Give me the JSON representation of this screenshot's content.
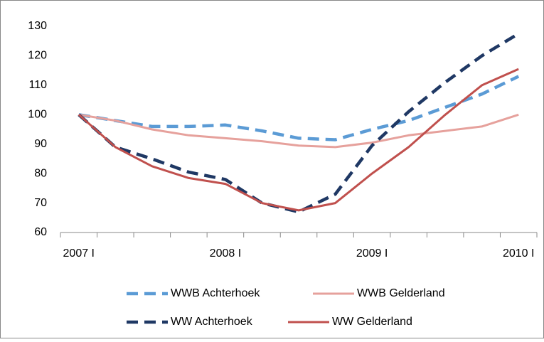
{
  "chart_data": {
    "type": "line",
    "categories": [
      "2007 I",
      null,
      null,
      null,
      "2008 I",
      null,
      null,
      null,
      "2009 I",
      null,
      null,
      null,
      "2010 I"
    ],
    "series": [
      {
        "name": "WWB Achterhoek",
        "color": "#5b9bd5",
        "dash": true,
        "values": [
          100,
          98,
          96,
          96,
          96.5,
          94.5,
          92,
          91.5,
          95,
          98,
          102.5,
          107,
          113
        ]
      },
      {
        "name": "WWB Gelderland",
        "color": "#e6a19c",
        "dash": false,
        "values": [
          100,
          98,
          95,
          93,
          92,
          91,
          89.5,
          89,
          90.5,
          93,
          94.5,
          96,
          100
        ]
      },
      {
        "name": "WW Achterhoek",
        "color": "#1f3864",
        "dash": true,
        "values": [
          100,
          89,
          85,
          80.5,
          78,
          70,
          67,
          73,
          89.5,
          101,
          111,
          120,
          127.5
        ]
      },
      {
        "name": "WW Gelderland",
        "color": "#c0504d",
        "dash": false,
        "values": [
          100,
          89,
          82.5,
          78.5,
          76.5,
          70,
          67.5,
          70,
          80,
          89,
          100,
          110,
          115.5
        ]
      }
    ],
    "ylim": [
      60,
      130
    ],
    "yticks": [
      60,
      70,
      80,
      90,
      100,
      110,
      120,
      130
    ],
    "grid": false
  }
}
